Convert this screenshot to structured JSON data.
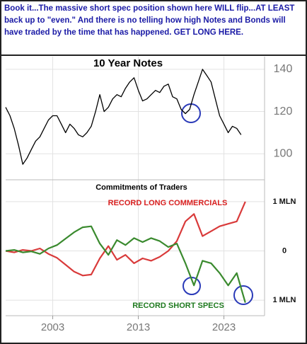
{
  "header": {
    "text": "Book it...The massive short spec position shown here WILL flip...AT LEAST back up to \"even.\" And there is no telling how high Notes and Bonds will have traded by the time that has happened. GET LONG HERE."
  },
  "chart_data": [
    {
      "type": "line",
      "title": "10 Year Notes",
      "x": [
        1997.5,
        1998,
        1998.5,
        1999,
        1999.5,
        2000,
        2000.5,
        2001,
        2001.5,
        2002,
        2002.5,
        2003,
        2003.5,
        2004,
        2004.5,
        2005,
        2005.5,
        2006,
        2006.5,
        2007,
        2007.5,
        2008,
        2008.5,
        2009,
        2009.5,
        2010,
        2010.5,
        2011,
        2011.5,
        2012,
        2012.5,
        2013,
        2013.5,
        2014,
        2014.5,
        2015,
        2015.5,
        2016,
        2016.5,
        2017,
        2017.5,
        2018,
        2018.5,
        2019,
        2019.5,
        2020,
        2020.5,
        2021,
        2021.5,
        2022,
        2022.5,
        2023,
        2023.5,
        2024,
        2024.5,
        2025
      ],
      "series": [
        {
          "color": "#000000",
          "values": [
            122,
            118,
            112,
            104,
            95,
            98,
            102,
            106,
            108,
            112,
            116,
            118,
            118,
            114,
            110,
            114,
            112,
            109,
            108,
            110,
            113,
            120,
            128,
            120,
            122,
            126,
            128,
            127,
            131,
            134,
            136,
            130,
            125,
            126,
            128,
            130,
            129,
            132,
            133,
            127,
            126,
            121,
            119,
            121,
            128,
            134,
            140,
            137,
            134,
            126,
            118,
            114,
            110,
            113,
            112,
            109
          ]
        }
      ],
      "xlim": [
        1997.5,
        2027.5
      ],
      "ylim": [
        88,
        146
      ],
      "yticks": [
        100,
        120,
        140
      ],
      "grid": true
    },
    {
      "type": "line",
      "title": "Commitments of Traders",
      "x": [
        1997.5,
        1998.5,
        1999.5,
        2000.5,
        2001.5,
        2002.5,
        2003.5,
        2004.5,
        2005.5,
        2006.5,
        2007.5,
        2008.5,
        2009.5,
        2010.5,
        2011.5,
        2012.5,
        2013.5,
        2014.5,
        2015.5,
        2016.5,
        2017.5,
        2018.5,
        2019.5,
        2020.5,
        2021.5,
        2022.5,
        2023.5,
        2024.5,
        2025.5
      ],
      "series": [
        {
          "color": "#d93a3a",
          "values": [
            0,
            -30000,
            20000,
            0,
            50000,
            -60000,
            -140000,
            -280000,
            -420000,
            -500000,
            -480000,
            -150000,
            100000,
            -180000,
            -80000,
            -250000,
            -150000,
            -200000,
            -120000,
            0,
            200000,
            600000,
            750000,
            300000,
            400000,
            500000,
            550000,
            600000,
            1000000
          ]
        },
        {
          "color": "#3a8a2e",
          "values": [
            0,
            20000,
            -30000,
            -10000,
            -60000,
            50000,
            120000,
            250000,
            380000,
            480000,
            500000,
            150000,
            -80000,
            220000,
            120000,
            260000,
            180000,
            260000,
            200000,
            80000,
            150000,
            -250000,
            -700000,
            -200000,
            -250000,
            -450000,
            -700000,
            -450000,
            -1050000
          ]
        }
      ],
      "annotations": [
        {
          "text": "RECORD LONG COMMERCIALS",
          "color": "#d92020"
        },
        {
          "text": "RECORD SHORT SPECS",
          "color": "#1f7a1f"
        }
      ],
      "xlim": [
        1997.5,
        2027.5
      ],
      "xticks": [
        2003,
        2013,
        2023
      ],
      "ylim": [
        -1300000,
        1430000
      ],
      "yticks": [
        {
          "value": -1000000,
          "label": "1 MLN"
        },
        0,
        {
          "value": 1000000,
          "label": "1 MLN"
        }
      ],
      "grid": true
    }
  ]
}
